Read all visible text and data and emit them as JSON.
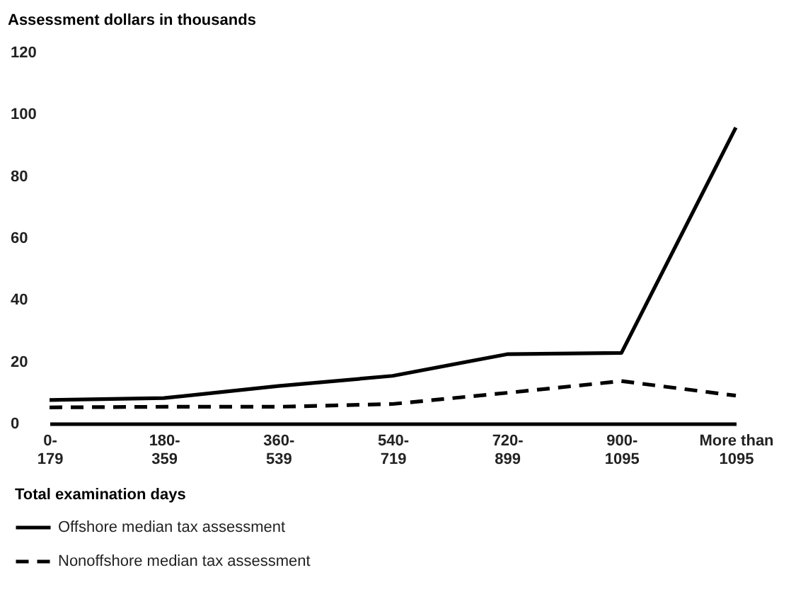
{
  "chart_data": {
    "type": "line",
    "ylabel": "Assessment dollars in thousands",
    "xlabel": "Total examination days",
    "categories": [
      "0-\n179",
      "180-\n359",
      "360-\n539",
      "540-\n719",
      "720-\n899",
      "900-\n1095",
      "More than\n1095"
    ],
    "series": [
      {
        "name": "Offshore median tax assessment",
        "color": "#000000",
        "line_style": "solid",
        "values": [
          7.6,
          8.2,
          12.1,
          15.4,
          22.4,
          22.8,
          95.7
        ]
      },
      {
        "name": "Nonoffshore median tax assessment",
        "color": "#000000",
        "line_style": "dashed",
        "values": [
          5.2,
          5.4,
          5.4,
          6.3,
          9.9,
          13.7,
          9
        ]
      }
    ],
    "ylim": [
      0,
      120
    ],
    "yticks": [
      0,
      20,
      40,
      60,
      80,
      100,
      120
    ],
    "grid": false,
    "legend": "bottom left",
    "marker": "none"
  }
}
